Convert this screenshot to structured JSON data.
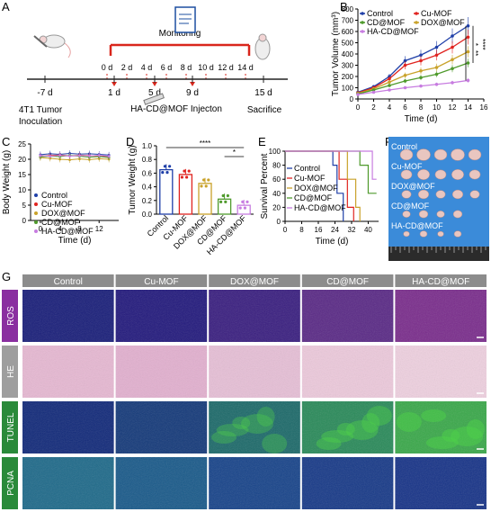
{
  "panel_labels": {
    "A": "A",
    "B": "B",
    "C": "C",
    "D": "D",
    "E": "E",
    "F": "F",
    "G": "G"
  },
  "colors": {
    "Control": "#1f3fa8",
    "Cu-MOF": "#e0231f",
    "DOX@MOF": "#c9a22a",
    "CD@MOF": "#4f9a2c",
    "HA-CD@MOF": "#c77ce0"
  },
  "timeline": {
    "monitoring": "Monitoring",
    "days_top": [
      "0 d",
      "2 d",
      "4 d",
      "6 d",
      "8 d",
      "10 d",
      "12 d",
      "14 d"
    ],
    "day_m7": "-7 d",
    "day_1": "1 d",
    "day_5": "5 d",
    "day_9": "9 d",
    "day_15": "15 d",
    "inoculation": "4T1 Tumor\nInoculation",
    "inoculation_l1": "4T1 Tumor",
    "inoculation_l2": "Inoculation",
    "injection": "HA-CD@MOF Injecton",
    "sacrifice": "Sacrifice"
  },
  "chart_data": [
    {
      "id": "B",
      "type": "line",
      "xlabel": "Time (d)",
      "ylabel": "Tumor Volume (mm³)",
      "x": [
        0,
        2,
        4,
        6,
        8,
        10,
        12,
        14
      ],
      "xlim": [
        0,
        16
      ],
      "ylim": [
        0,
        800
      ],
      "xticks": [
        0,
        2,
        4,
        6,
        8,
        10,
        12,
        14,
        16
      ],
      "yticks": [
        0,
        100,
        200,
        300,
        400,
        500,
        600,
        700,
        800
      ],
      "series": [
        {
          "name": "Control",
          "values": [
            60,
            110,
            200,
            340,
            390,
            460,
            560,
            650
          ]
        },
        {
          "name": "Cu-MOF",
          "values": [
            55,
            100,
            180,
            300,
            340,
            390,
            460,
            550
          ]
        },
        {
          "name": "DOX@MOF",
          "values": [
            50,
            90,
            150,
            210,
            250,
            280,
            350,
            420
          ]
        },
        {
          "name": "CD@MOF",
          "values": [
            45,
            80,
            120,
            160,
            190,
            220,
            270,
            320
          ]
        },
        {
          "name": "HA-CD@MOF",
          "values": [
            40,
            60,
            80,
            100,
            115,
            130,
            145,
            165
          ]
        }
      ],
      "significance": [
        "**",
        "****",
        "*"
      ]
    },
    {
      "id": "C",
      "type": "line",
      "xlabel": "Time (d)",
      "ylabel": "Body Weight (g)",
      "x": [
        0,
        2,
        4,
        6,
        8,
        10,
        12,
        14
      ],
      "xlim": [
        -2,
        16
      ],
      "ylim": [
        0,
        25
      ],
      "xticks": [
        0,
        4,
        8,
        12
      ],
      "yticks": [
        0,
        5,
        10,
        15,
        20,
        25
      ],
      "series": [
        {
          "name": "Control",
          "values": [
            21.5,
            21.8,
            21.6,
            21.9,
            21.7,
            21.8,
            21.6,
            21.4
          ]
        },
        {
          "name": "Cu-MOF",
          "values": [
            21.0,
            21.2,
            21.4,
            21.1,
            21.3,
            21.2,
            21.0,
            20.8
          ]
        },
        {
          "name": "DOX@MOF",
          "values": [
            20.5,
            20.3,
            20.0,
            19.8,
            20.1,
            19.9,
            20.2,
            20.0
          ]
        },
        {
          "name": "CD@MOF",
          "values": [
            20.8,
            21.0,
            20.9,
            21.2,
            21.0,
            20.7,
            20.9,
            20.6
          ]
        },
        {
          "name": "HA-CD@MOF",
          "values": [
            21.2,
            21.0,
            21.3,
            21.0,
            21.2,
            21.1,
            21.3,
            21.0
          ]
        }
      ]
    },
    {
      "id": "D",
      "type": "bar",
      "ylabel": "Tumor Weight (g)",
      "categories": [
        "Control",
        "Cu-MOF",
        "DOX@MOF",
        "CD@MOF",
        "HA-CD@MOF"
      ],
      "values": [
        0.65,
        0.58,
        0.45,
        0.22,
        0.13
      ],
      "ylim": [
        0,
        1.0
      ],
      "yticks": [
        0.0,
        0.2,
        0.4,
        0.6,
        0.8,
        1.0
      ],
      "significance": [
        "****",
        "*"
      ]
    },
    {
      "id": "E",
      "type": "line",
      "xlabel": "Time (d)",
      "ylabel": "Survival Percent",
      "xlim": [
        0,
        45
      ],
      "ylim": [
        0,
        100
      ],
      "xticks": [
        0,
        8,
        16,
        24,
        32,
        40
      ],
      "yticks": [
        0,
        20,
        40,
        60,
        80,
        100
      ],
      "series": [
        {
          "name": "Control",
          "values": [
            [
              0,
              100
            ],
            [
              23,
              100
            ],
            [
              23,
              80
            ],
            [
              25,
              80
            ],
            [
              25,
              40
            ],
            [
              28,
              40
            ],
            [
              28,
              0
            ]
          ]
        },
        {
          "name": "Cu-MOF",
          "values": [
            [
              0,
              100
            ],
            [
              26,
              100
            ],
            [
              26,
              60
            ],
            [
              30,
              60
            ],
            [
              30,
              20
            ],
            [
              33,
              20
            ],
            [
              33,
              0
            ]
          ]
        },
        {
          "name": "DOX@MOF",
          "values": [
            [
              0,
              100
            ],
            [
              30,
              100
            ],
            [
              30,
              60
            ],
            [
              34,
              60
            ],
            [
              34,
              20
            ],
            [
              36,
              20
            ],
            [
              36,
              0
            ]
          ]
        },
        {
          "name": "CD@MOF",
          "values": [
            [
              0,
              100
            ],
            [
              36,
              100
            ],
            [
              36,
              80
            ],
            [
              40,
              80
            ],
            [
              40,
              40
            ],
            [
              44,
              40
            ]
          ]
        },
        {
          "name": "HA-CD@MOF",
          "values": [
            [
              0,
              100
            ],
            [
              42,
              100
            ],
            [
              42,
              60
            ],
            [
              44,
              60
            ]
          ]
        }
      ]
    }
  ],
  "photo": {
    "rows": [
      "Control",
      "Cu-MOF",
      "DOX@MOF",
      "CD@MOF",
      "HA-CD@MOF"
    ],
    "per_row": [
      5,
      5,
      5,
      4,
      4
    ],
    "background": "#3b8bd9"
  },
  "histology": {
    "columns": [
      "Control",
      "Cu-MOF",
      "DOX@MOF",
      "CD@MOF",
      "HA-CD@MOF"
    ],
    "rows": [
      {
        "label": "ROS",
        "labelColor": "#8a2fa0"
      },
      {
        "label": "HE",
        "labelColor": "#9e9e9e"
      },
      {
        "label": "TUNEL",
        "labelColor": "#2a8a3a"
      },
      {
        "label": "PCNA",
        "labelColor": "#2a8a3a"
      }
    ]
  }
}
